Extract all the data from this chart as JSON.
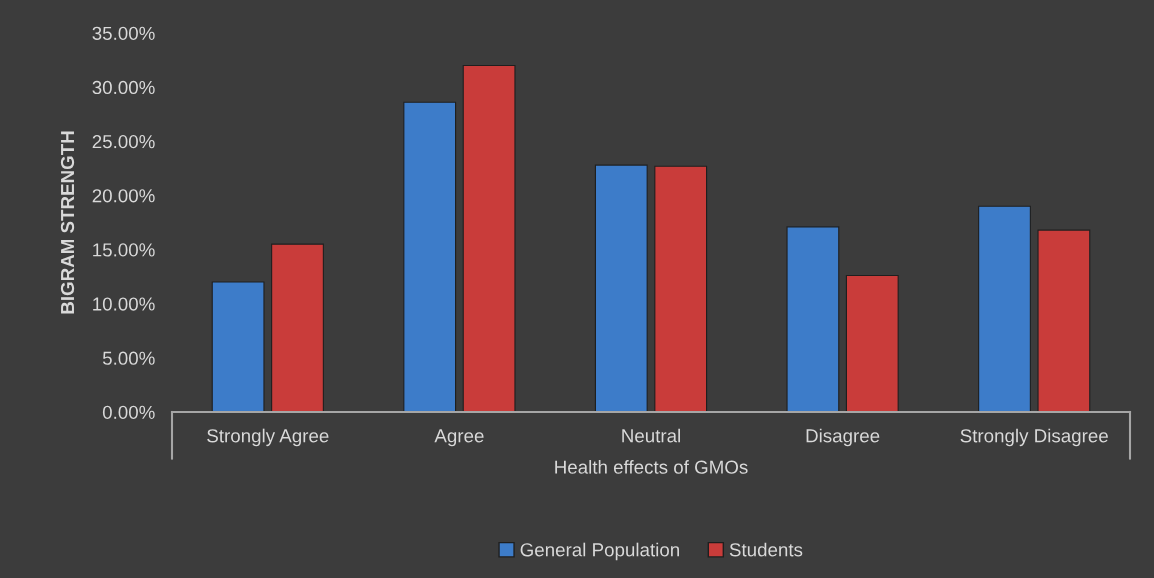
{
  "chart_data": {
    "type": "bar",
    "xlabel": "Health effects of GMOs",
    "ylabel": "BIGRAM STRENGTH",
    "categories": [
      "Strongly Agree",
      "Agree",
      "Neutral",
      "Disagree",
      "Strongly Disagree"
    ],
    "series": [
      {
        "name": "General Population",
        "color": "#3d7cc9",
        "values": [
          12.0,
          28.6,
          22.8,
          17.1,
          19.0
        ]
      },
      {
        "name": "Students",
        "color": "#c93c3a",
        "values": [
          15.5,
          32.0,
          22.7,
          12.6,
          16.8
        ]
      }
    ],
    "ylim": [
      0,
      35
    ],
    "yticks": [
      {
        "value": 0,
        "label": "0.00%"
      },
      {
        "value": 5,
        "label": "5.00%"
      },
      {
        "value": 10,
        "label": "10.00%"
      },
      {
        "value": 15,
        "label": "15.00%"
      },
      {
        "value": 20,
        "label": "20.00%"
      },
      {
        "value": 25,
        "label": "25.00%"
      },
      {
        "value": 30,
        "label": "30.00%"
      },
      {
        "value": 35,
        "label": "35.00%"
      }
    ],
    "grid": false,
    "legend": "bottom"
  }
}
